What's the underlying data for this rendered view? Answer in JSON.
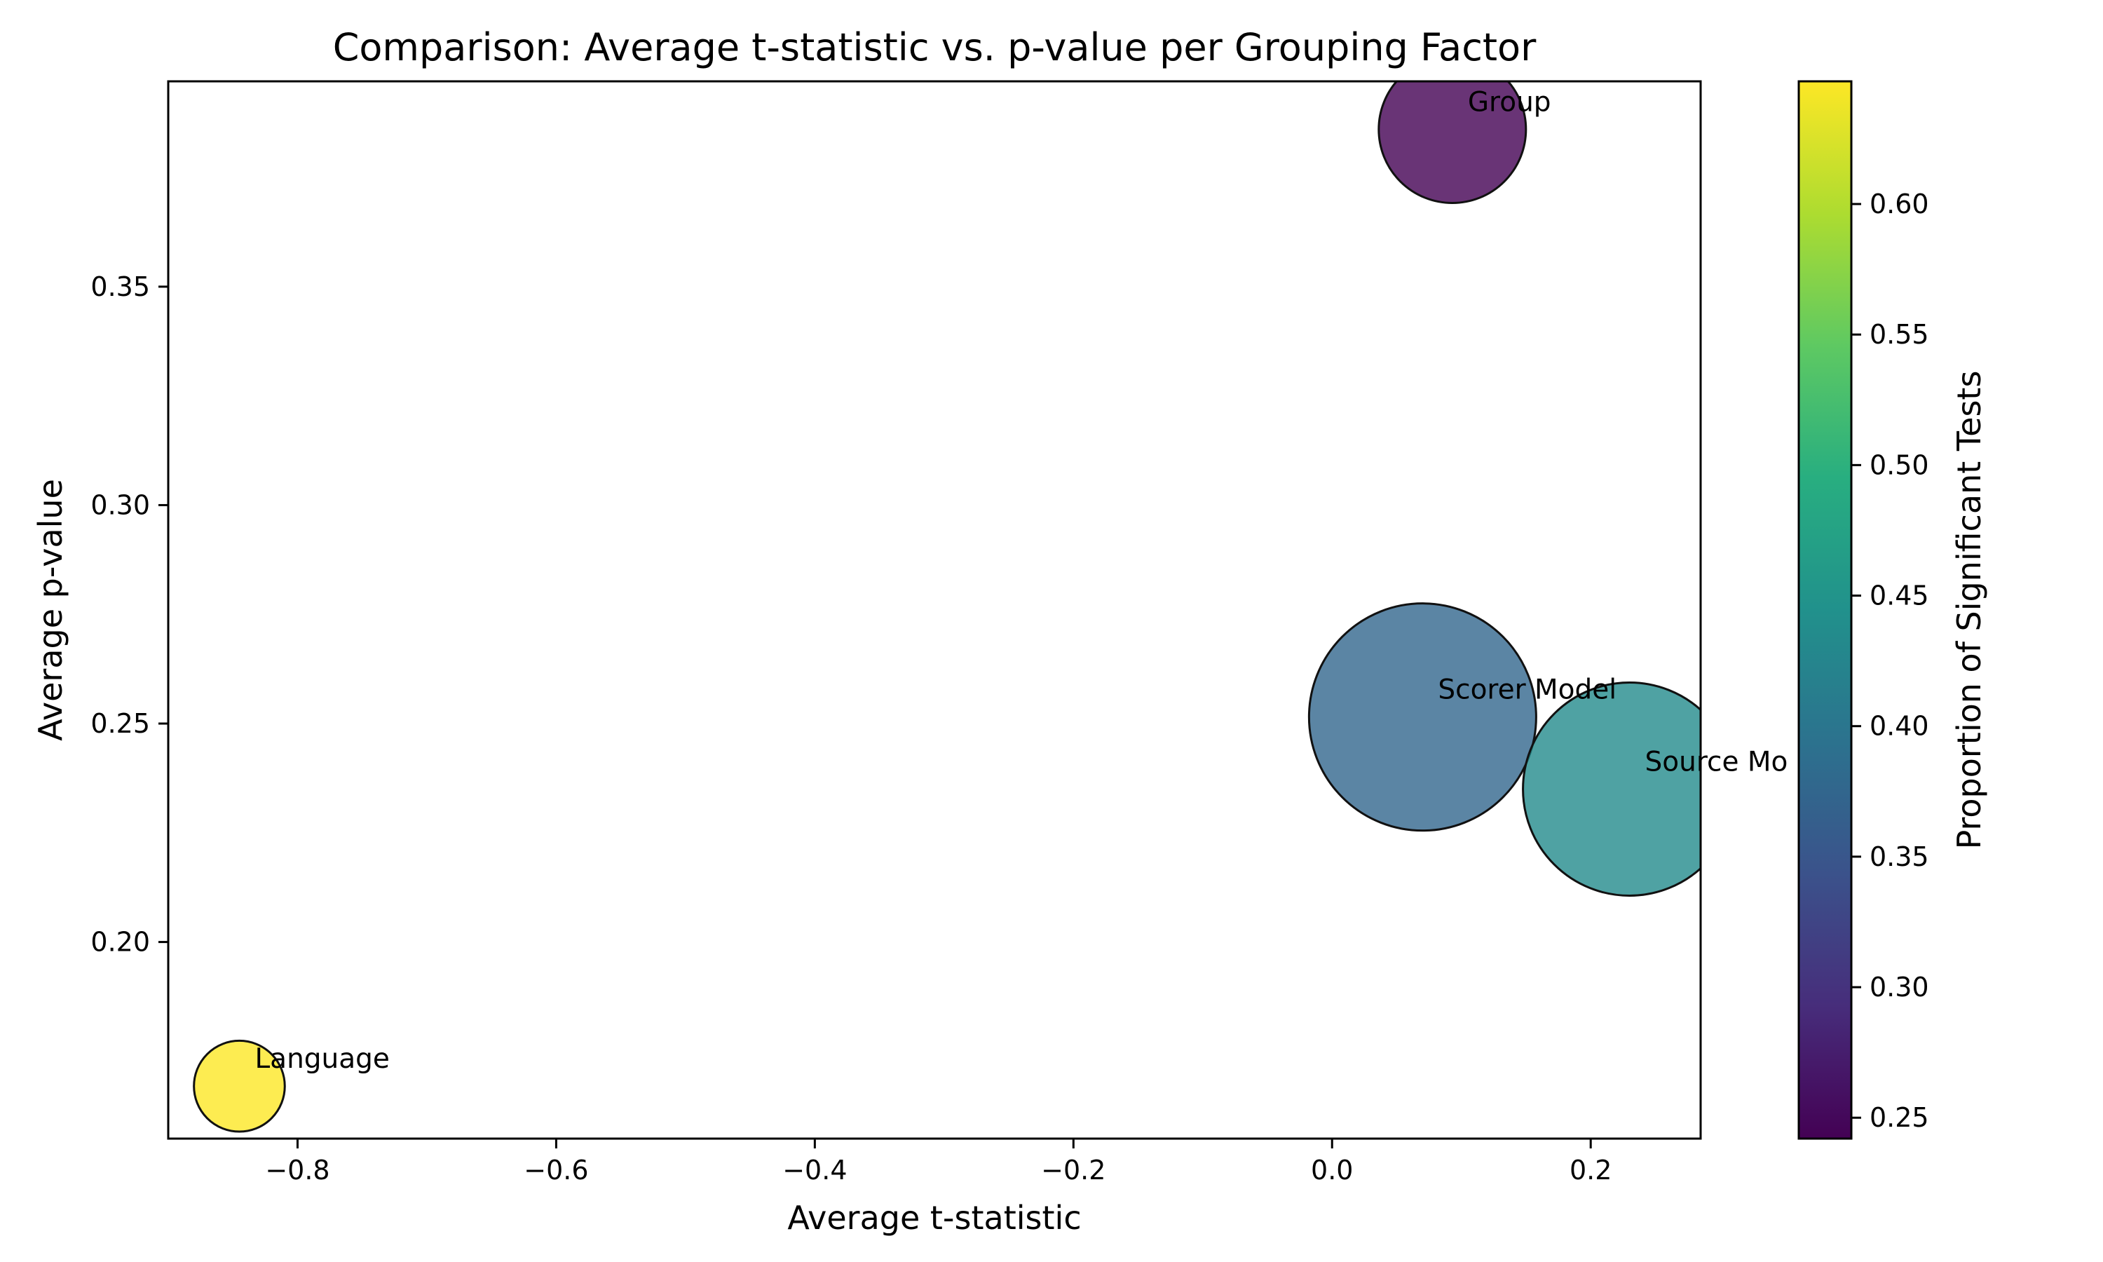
{
  "chart_data": {
    "type": "scatter",
    "title": "Comparison: Average t-statistic vs. p-value per Grouping Factor",
    "xlabel": "Average t-statistic",
    "ylabel": "Average p-value",
    "xlim": [
      -0.9,
      0.285
    ],
    "ylim": [
      0.155,
      0.397
    ],
    "xticks": [
      -0.8,
      -0.6,
      -0.4,
      -0.2,
      0.0,
      0.2
    ],
    "xtick_labels": [
      "−0.8",
      "−0.6",
      "−0.4",
      "−0.2",
      "0.0",
      "0.2"
    ],
    "yticks": [
      0.2,
      0.25,
      0.3,
      0.35
    ],
    "ytick_labels": [
      "0.20",
      "0.25",
      "0.30",
      "0.35"
    ],
    "colorbar": {
      "label": "Proportion of Significant Tests",
      "colormap": "viridis",
      "range": [
        0.242,
        0.647
      ],
      "ticks": [
        0.25,
        0.3,
        0.35,
        0.4,
        0.45,
        0.5,
        0.55,
        0.6
      ],
      "tick_labels": [
        "0.25",
        "0.30",
        "0.35",
        "0.40",
        "0.45",
        "0.50",
        "0.55",
        "0.60"
      ]
    },
    "points": [
      {
        "label": "Group",
        "x": 0.093,
        "y": 0.386,
        "color_value": 0.242,
        "relative_size": 0.42
      },
      {
        "label": "Scorer Model",
        "x": 0.07,
        "y": 0.2515,
        "color_value": 0.375,
        "relative_size": 1.0
      },
      {
        "label": "Source Mo",
        "x": 0.23,
        "y": 0.235,
        "color_value": 0.435,
        "relative_size": 0.88
      },
      {
        "label": "Language",
        "x": -0.845,
        "y": 0.167,
        "color_value": 0.647,
        "relative_size": 0.16
      }
    ],
    "grid": false,
    "legend": "none"
  }
}
